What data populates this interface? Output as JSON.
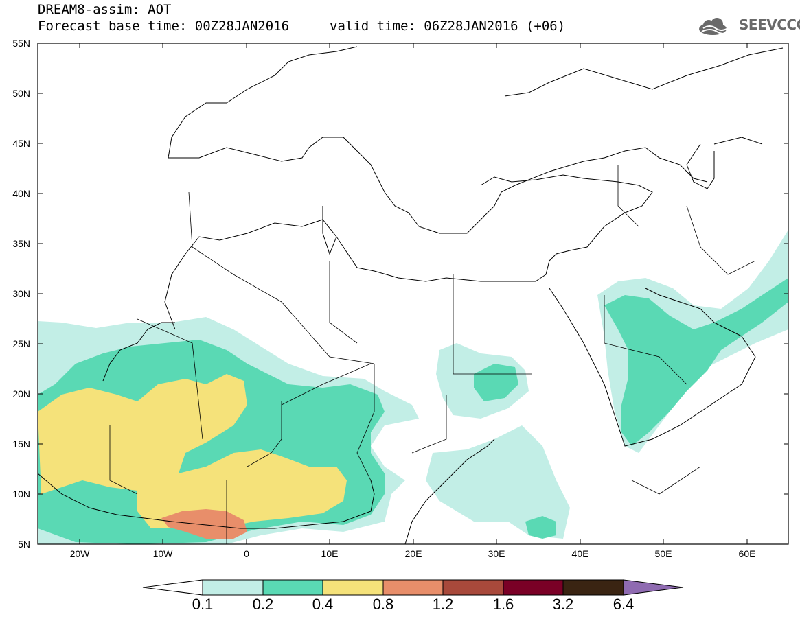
{
  "header": {
    "title": "DREAM8-assim: AOT",
    "forecast": "Forecast base time: 00Z28JAN2016",
    "valid": "valid time: 06Z28JAN2016 (+06)",
    "logo_text": "SEEVCCC"
  },
  "axes": {
    "lat_ticks": [
      "55N",
      "50N",
      "45N",
      "40N",
      "35N",
      "30N",
      "25N",
      "20N",
      "15N",
      "10N",
      "5N"
    ],
    "lon_ticks": [
      "20W",
      "10W",
      "0",
      "10E",
      "20E",
      "30E",
      "40E",
      "50E",
      "60E"
    ]
  },
  "colorbar": {
    "labels": [
      "0.1",
      "0.2",
      "0.4",
      "0.8",
      "1.2",
      "1.6",
      "3.2",
      "6.4"
    ],
    "colors": [
      "#ffffff",
      "#c2eee6",
      "#5ad9b4",
      "#f5e27a",
      "#e88e6a",
      "#a8493b",
      "#7a0026",
      "#3a2412",
      "#8f6bb1"
    ]
  },
  "legend_colors": {
    "c01": "#c2eee6",
    "c02": "#5ad9b4",
    "c04": "#f5e27a",
    "c08": "#e88e6a"
  }
}
